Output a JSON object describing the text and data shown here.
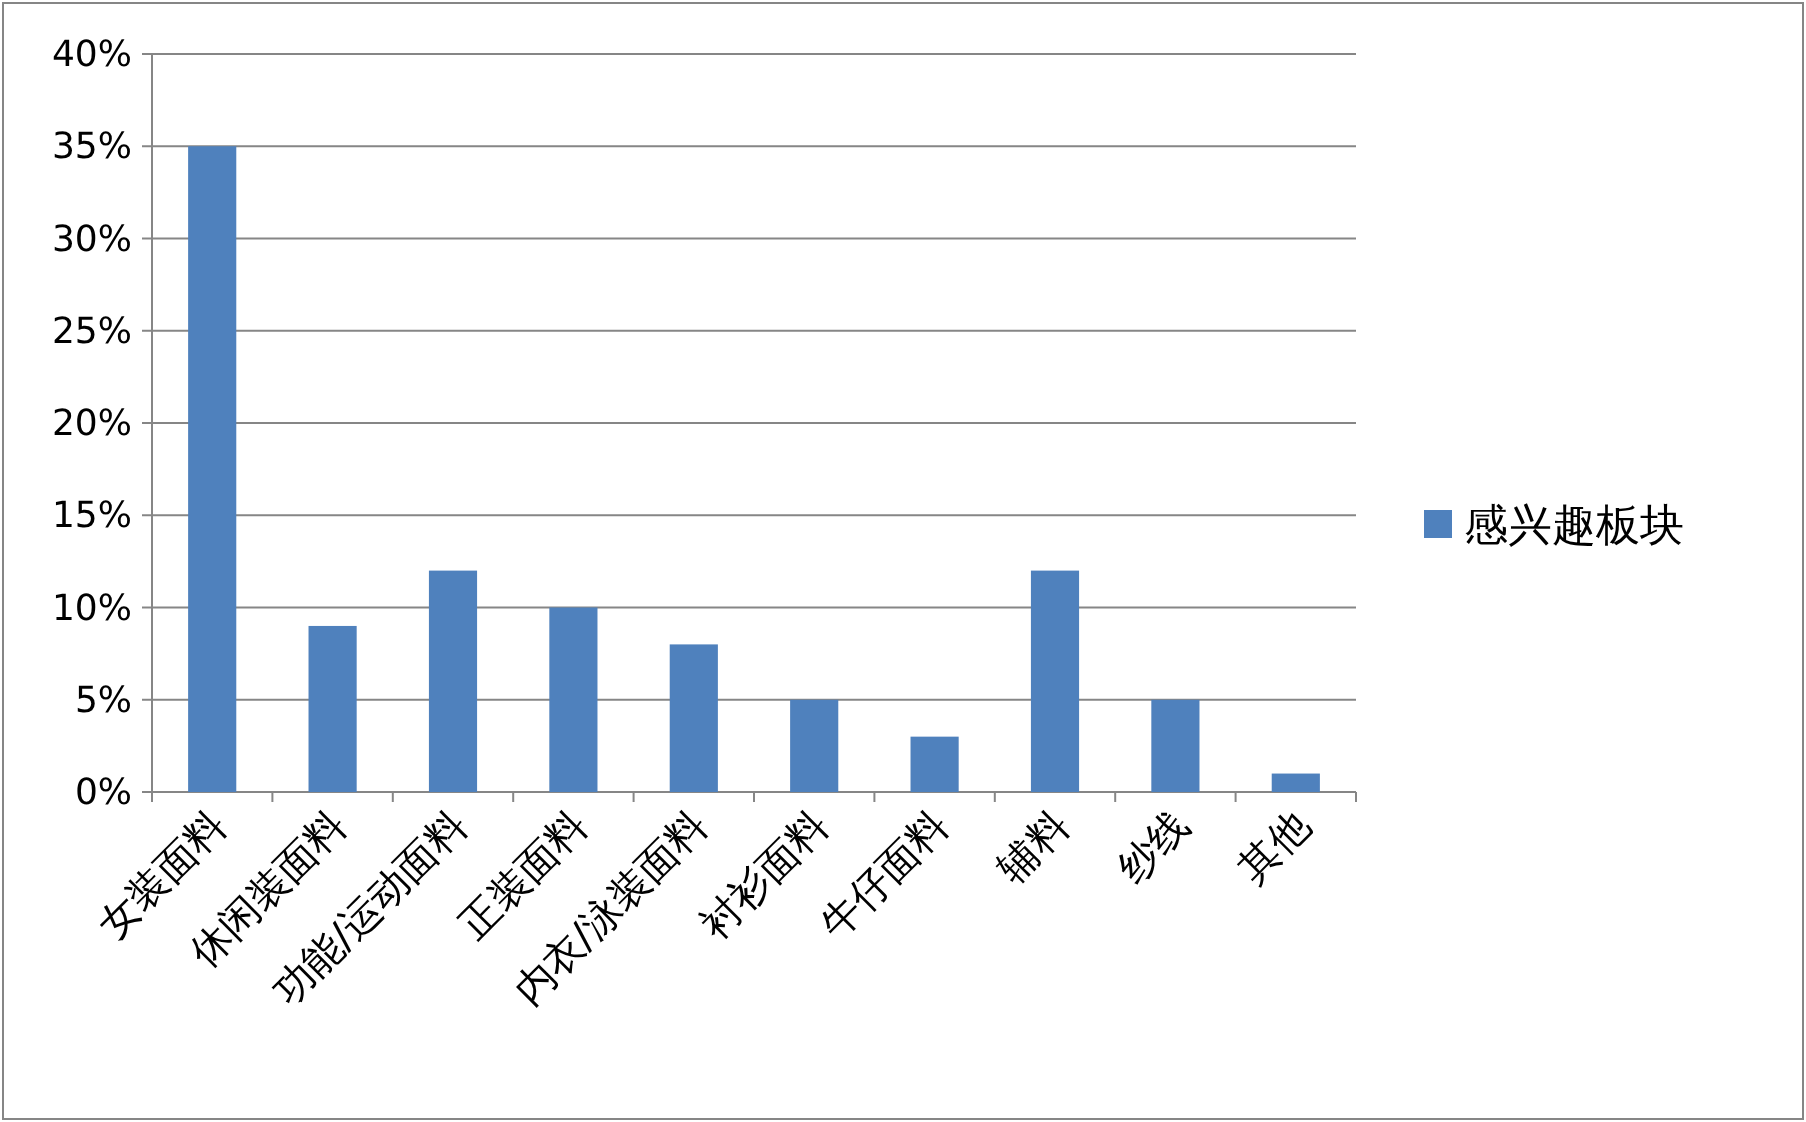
{
  "chart_data": {
    "type": "bar",
    "categories": [
      "女装面料",
      "休闲装面料",
      "功能/运动面料",
      "正装面料",
      "内衣/泳装面料",
      "衬衫面料",
      "牛仔面料",
      "辅料",
      "纱线",
      "其他"
    ],
    "series": [
      {
        "name": "感兴趣板块",
        "color": "#4f81bd",
        "values": [
          35,
          9,
          12,
          10,
          8,
          5,
          3,
          12,
          5,
          1
        ]
      }
    ],
    "ylim": [
      0,
      40
    ],
    "yticks": [
      {
        "value": 0,
        "label": "0%"
      },
      {
        "value": 5,
        "label": "5%"
      },
      {
        "value": 10,
        "label": "10%"
      },
      {
        "value": 15,
        "label": "15%"
      },
      {
        "value": 20,
        "label": "20%"
      },
      {
        "value": 25,
        "label": "25%"
      },
      {
        "value": 30,
        "label": "30%"
      },
      {
        "value": 35,
        "label": "35%"
      },
      {
        "value": 40,
        "label": "40%"
      }
    ],
    "grid": "y",
    "legend": "right"
  }
}
